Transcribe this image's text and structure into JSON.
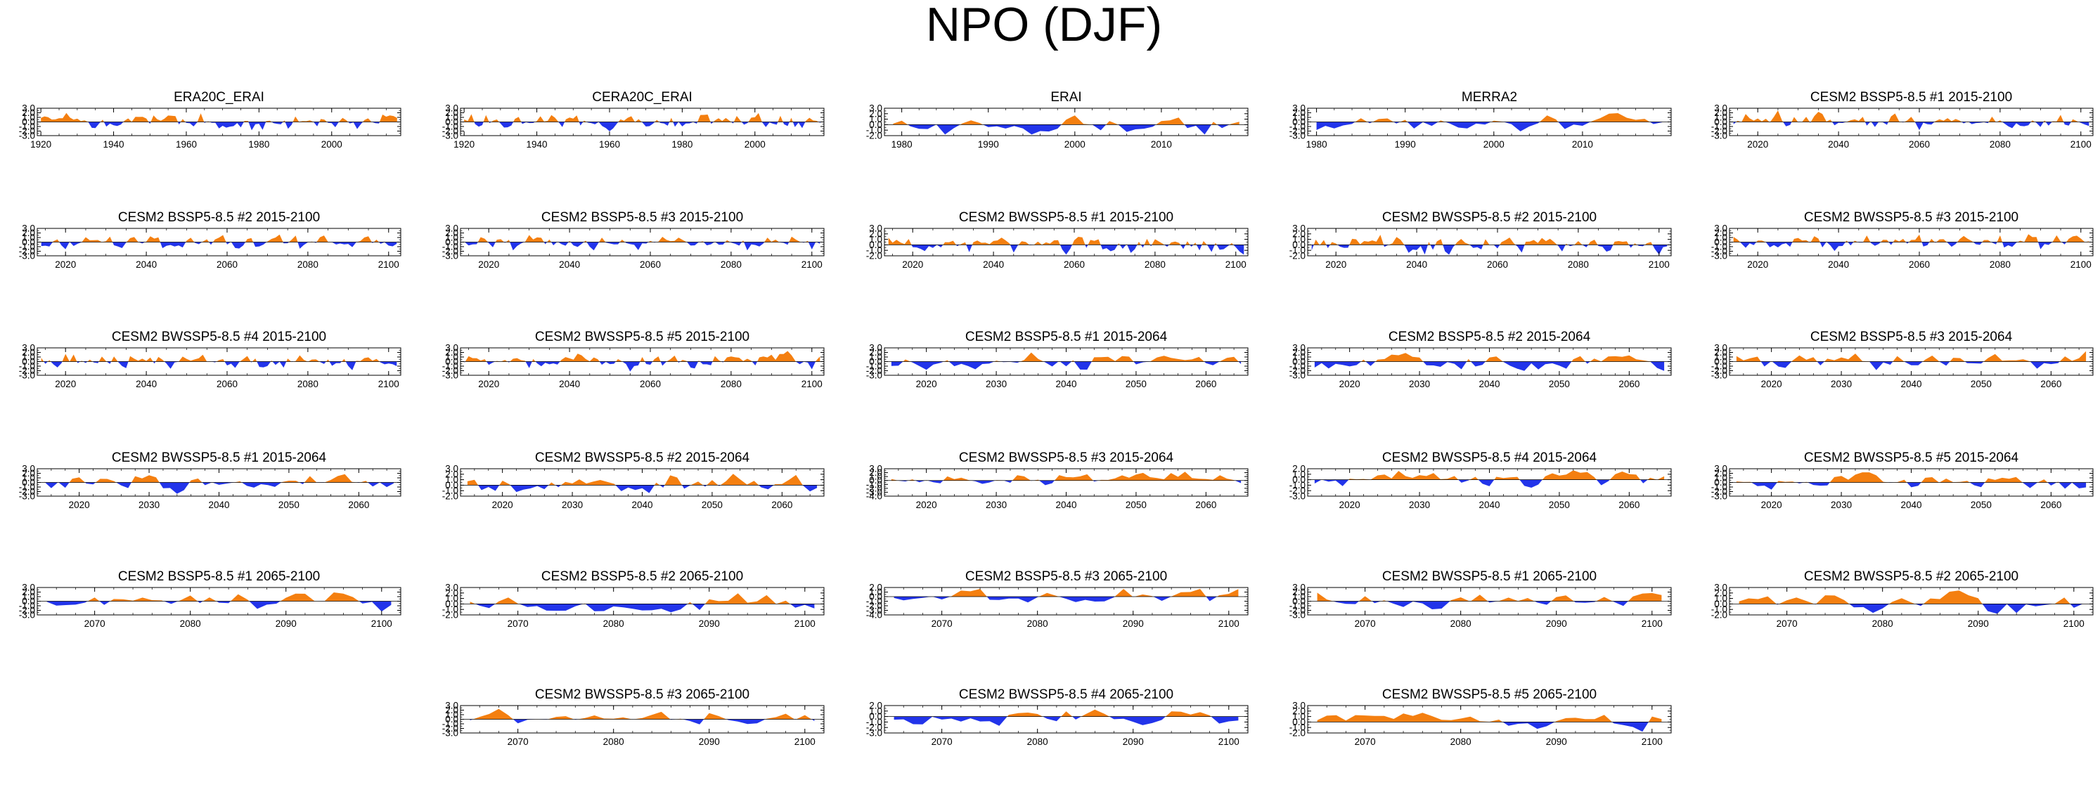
{
  "title": "NPO (DJF)",
  "colors": {
    "positive": "#f47f10",
    "negative": "#2234ea",
    "axis": "#000000"
  },
  "chart_data": [
    {
      "type": "area",
      "title": "ERA20C_ERAI",
      "xlim": [
        1919,
        2019
      ],
      "ylim": [
        -3,
        3
      ],
      "yticks": [
        "3.0",
        "2.0",
        "1.0",
        "0.0",
        "-1.0",
        "-2.0",
        "-3.0"
      ],
      "xticks": [
        1920,
        1940,
        1960,
        1980,
        2000
      ],
      "seed": 3
    },
    {
      "type": "area",
      "title": "CERA20C_ERAI",
      "xlim": [
        1919,
        2019
      ],
      "ylim": [
        -3,
        3
      ],
      "yticks": [
        "3.0",
        "2.0",
        "1.0",
        "0.0",
        "-1.0",
        "-2.0",
        "-3.0"
      ],
      "xticks": [
        1920,
        1940,
        1960,
        1980,
        2000
      ],
      "seed": 5
    },
    {
      "type": "area",
      "title": "ERAI",
      "xlim": [
        1978,
        2020
      ],
      "ylim": [
        -2,
        3
      ],
      "yticks": [
        "3.0",
        "2.0",
        "1.0",
        "0.0",
        "-1.0",
        "-2.0"
      ],
      "xticks": [
        1980,
        1990,
        2000,
        2010
      ],
      "seed": 7
    },
    {
      "type": "area",
      "title": "MERRA2",
      "xlim": [
        1979,
        2020
      ],
      "ylim": [
        -3,
        3
      ],
      "yticks": [
        "3.0",
        "2.0",
        "1.0",
        "0.0",
        "-1.0",
        "-2.0",
        "-3.0"
      ],
      "xticks": [
        1980,
        1990,
        2000,
        2010
      ],
      "seed": 9
    },
    {
      "type": "area",
      "title": "CESM2 BSSP5-8.5 #1 2015-2100",
      "xlim": [
        2013,
        2103
      ],
      "ylim": [
        -3,
        3
      ],
      "yticks": [
        "3.0",
        "2.0",
        "1.0",
        "0.0",
        "-1.0",
        "-2.0",
        "-3.0"
      ],
      "xticks": [
        2020,
        2040,
        2060,
        2080,
        2100
      ],
      "seed": 11
    },
    {
      "type": "area",
      "title": "CESM2 BSSP5-8.5 #2 2015-2100",
      "xlim": [
        2013,
        2103
      ],
      "ylim": [
        -3,
        3
      ],
      "yticks": [
        "3.0",
        "2.0",
        "1.0",
        "0.0",
        "-1.0",
        "-2.0",
        "-3.0"
      ],
      "xticks": [
        2020,
        2040,
        2060,
        2080,
        2100
      ],
      "seed": 13
    },
    {
      "type": "area",
      "title": "CESM2 BSSP5-8.5 #3 2015-2100",
      "xlim": [
        2013,
        2103
      ],
      "ylim": [
        -3,
        3
      ],
      "yticks": [
        "3.0",
        "2.0",
        "1.0",
        "0.0",
        "-1.0",
        "-2.0",
        "-3.0"
      ],
      "xticks": [
        2020,
        2040,
        2060,
        2080,
        2100
      ],
      "seed": 17
    },
    {
      "type": "area",
      "title": "CESM2 BWSSP5-8.5 #1 2015-2100",
      "xlim": [
        2013,
        2103
      ],
      "ylim": [
        -2,
        3
      ],
      "yticks": [
        "3.0",
        "2.0",
        "1.0",
        "0.0",
        "-1.0",
        "-2.0"
      ],
      "xticks": [
        2020,
        2040,
        2060,
        2080,
        2100
      ],
      "seed": 19
    },
    {
      "type": "area",
      "title": "CESM2 BWSSP5-8.5 #2 2015-2100",
      "xlim": [
        2013,
        2103
      ],
      "ylim": [
        -2,
        3
      ],
      "yticks": [
        "3.0",
        "2.0",
        "1.0",
        "0.0",
        "-1.0",
        "-2.0"
      ],
      "xticks": [
        2020,
        2040,
        2060,
        2080,
        2100
      ],
      "seed": 23
    },
    {
      "type": "area",
      "title": "CESM2 BWSSP5-8.5 #3 2015-2100",
      "xlim": [
        2013,
        2103
      ],
      "ylim": [
        -3,
        3
      ],
      "yticks": [
        "3.0",
        "2.0",
        "1.0",
        "0.0",
        "-1.0",
        "-2.0",
        "-3.0"
      ],
      "xticks": [
        2020,
        2040,
        2060,
        2080,
        2100
      ],
      "seed": 29
    },
    {
      "type": "area",
      "title": "CESM2 BWSSP5-8.5 #4 2015-2100",
      "xlim": [
        2013,
        2103
      ],
      "ylim": [
        -3,
        3
      ],
      "yticks": [
        "3.0",
        "2.0",
        "1.0",
        "0.0",
        "-1.0",
        "-2.0",
        "-3.0"
      ],
      "xticks": [
        2020,
        2040,
        2060,
        2080,
        2100
      ],
      "seed": 31
    },
    {
      "type": "area",
      "title": "CESM2 BWSSP5-8.5 #5 2015-2100",
      "xlim": [
        2013,
        2103
      ],
      "ylim": [
        -3,
        3
      ],
      "yticks": [
        "3.0",
        "2.0",
        "1.0",
        "0.0",
        "-1.0",
        "-2.0",
        "-3.0"
      ],
      "xticks": [
        2020,
        2040,
        2060,
        2080,
        2100
      ],
      "seed": 37
    },
    {
      "type": "area",
      "title": "CESM2 BSSP5-8.5 #1 2015-2064",
      "xlim": [
        2014,
        2066
      ],
      "ylim": [
        -3,
        3
      ],
      "yticks": [
        "3.0",
        "2.0",
        "1.0",
        "0.0",
        "-1.0",
        "-2.0",
        "-3.0"
      ],
      "xticks": [
        2020,
        2030,
        2040,
        2050,
        2060
      ],
      "seed": 41
    },
    {
      "type": "area",
      "title": "CESM2 BSSP5-8.5 #2 2015-2064",
      "xlim": [
        2014,
        2066
      ],
      "ylim": [
        -3,
        3
      ],
      "yticks": [
        "3.0",
        "2.0",
        "1.0",
        "0.0",
        "-1.0",
        "-2.0",
        "-3.0"
      ],
      "xticks": [
        2020,
        2030,
        2040,
        2050,
        2060
      ],
      "seed": 43
    },
    {
      "type": "area",
      "title": "CESM2 BSSP5-8.5 #3 2015-2064",
      "xlim": [
        2014,
        2066
      ],
      "ylim": [
        -3,
        3
      ],
      "yticks": [
        "3.0",
        "2.0",
        "1.0",
        "0.0",
        "-1.0",
        "-2.0",
        "-3.0"
      ],
      "xticks": [
        2020,
        2030,
        2040,
        2050,
        2060
      ],
      "seed": 47
    },
    {
      "type": "area",
      "title": "CESM2 BWSSP5-8.5 #1 2015-2064",
      "xlim": [
        2014,
        2066
      ],
      "ylim": [
        -3,
        3
      ],
      "yticks": [
        "3.0",
        "2.0",
        "1.0",
        "0.0",
        "-1.0",
        "-2.0",
        "-3.0"
      ],
      "xticks": [
        2020,
        2030,
        2040,
        2050,
        2060
      ],
      "seed": 53
    },
    {
      "type": "area",
      "title": "CESM2 BWSSP5-8.5 #2 2015-2064",
      "xlim": [
        2014,
        2066
      ],
      "ylim": [
        -2,
        3
      ],
      "yticks": [
        "3.0",
        "2.0",
        "1.0",
        "0.0",
        "-1.0",
        "-2.0"
      ],
      "xticks": [
        2020,
        2030,
        2040,
        2050,
        2060
      ],
      "seed": 59
    },
    {
      "type": "area",
      "title": "CESM2 BWSSP5-8.5 #3 2015-2064",
      "xlim": [
        2014,
        2066
      ],
      "ylim": [
        -4,
        3
      ],
      "yticks": [
        "3.0",
        "2.0",
        "1.0",
        "0.0",
        "-1.0",
        "-2.0",
        "-3.0",
        "-4.0"
      ],
      "xticks": [
        2020,
        2030,
        2040,
        2050,
        2060
      ],
      "seed": 61
    },
    {
      "type": "area",
      "title": "CESM2 BWSSP5-8.5 #4 2015-2064",
      "xlim": [
        2014,
        2066
      ],
      "ylim": [
        -3,
        2
      ],
      "yticks": [
        "2.0",
        "1.0",
        "0.0",
        "-1.0",
        "-2.0",
        "-3.0"
      ],
      "xticks": [
        2020,
        2030,
        2040,
        2050,
        2060
      ],
      "seed": 67
    },
    {
      "type": "area",
      "title": "CESM2 BWSSP5-8.5 #5 2015-2064",
      "xlim": [
        2014,
        2066
      ],
      "ylim": [
        -3,
        3
      ],
      "yticks": [
        "3.0",
        "2.0",
        "1.0",
        "0.0",
        "-1.0",
        "-2.0",
        "-3.0"
      ],
      "xticks": [
        2020,
        2030,
        2040,
        2050,
        2060
      ],
      "seed": 71
    },
    {
      "type": "area",
      "title": "CESM2 BSSP5-8.5 #1 2065-2100",
      "xlim": [
        2064,
        2102
      ],
      "ylim": [
        -3,
        3
      ],
      "yticks": [
        "3.0",
        "2.0",
        "1.0",
        "0.0",
        "-1.0",
        "-2.0",
        "-3.0"
      ],
      "xticks": [
        2070,
        2080,
        2090,
        2100
      ],
      "seed": 73
    },
    {
      "type": "area",
      "title": "CESM2 BSSP5-8.5 #2 2065-2100",
      "xlim": [
        2064,
        2102
      ],
      "ylim": [
        -2,
        3
      ],
      "yticks": [
        "3.0",
        "2.0",
        "1.0",
        "0.0",
        "-1.0",
        "-2.0"
      ],
      "xticks": [
        2070,
        2080,
        2090,
        2100
      ],
      "seed": 79
    },
    {
      "type": "area",
      "title": "CESM2 BSSP5-8.5 #3 2065-2100",
      "xlim": [
        2064,
        2102
      ],
      "ylim": [
        -4,
        2
      ],
      "yticks": [
        "2.0",
        "1.0",
        "0.0",
        "-1.0",
        "-2.0",
        "-3.0",
        "-4.0"
      ],
      "xticks": [
        2070,
        2080,
        2090,
        2100
      ],
      "seed": 83
    },
    {
      "type": "area",
      "title": "CESM2 BWSSP5-8.5 #1 2065-2100",
      "xlim": [
        2064,
        2102
      ],
      "ylim": [
        -3,
        3
      ],
      "yticks": [
        "3.0",
        "2.0",
        "1.0",
        "0.0",
        "-1.0",
        "-2.0",
        "-3.0"
      ],
      "xticks": [
        2070,
        2080,
        2090,
        2100
      ],
      "seed": 89
    },
    {
      "type": "area",
      "title": "CESM2 BWSSP5-8.5 #2 2065-2100",
      "xlim": [
        2064,
        2102
      ],
      "ylim": [
        -2,
        3
      ],
      "yticks": [
        "3.0",
        "2.0",
        "1.0",
        "0.0",
        "-1.0",
        "-2.0"
      ],
      "xticks": [
        2070,
        2080,
        2090,
        2100
      ],
      "seed": 97
    },
    {
      "type": "area",
      "title": "CESM2 BWSSP5-8.5 #3 2065-2100",
      "xlim": [
        2064,
        2102
      ],
      "ylim": [
        -3,
        3
      ],
      "yticks": [
        "3.0",
        "2.0",
        "1.0",
        "0.0",
        "-1.0",
        "-2.0",
        "-3.0"
      ],
      "xticks": [
        2070,
        2080,
        2090,
        2100
      ],
      "seed": 101
    },
    {
      "type": "area",
      "title": "CESM2 BWSSP5-8.5 #4 2065-2100",
      "xlim": [
        2064,
        2102
      ],
      "ylim": [
        -3,
        2
      ],
      "yticks": [
        "2.0",
        "1.0",
        "0.0",
        "-1.0",
        "-2.0",
        "-3.0"
      ],
      "xticks": [
        2070,
        2080,
        2090,
        2100
      ],
      "seed": 103
    },
    {
      "type": "area",
      "title": "CESM2 BWSSP5-8.5 #5 2065-2100",
      "xlim": [
        2064,
        2102
      ],
      "ylim": [
        -2,
        3
      ],
      "yticks": [
        "3.0",
        "2.0",
        "1.0",
        "0.0",
        "-1.0",
        "-2.0"
      ],
      "xticks": [
        2070,
        2080,
        2090,
        2100
      ],
      "seed": 107
    }
  ]
}
